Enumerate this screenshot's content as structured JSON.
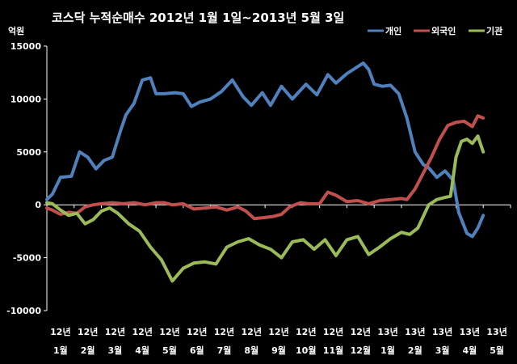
{
  "chart_data": {
    "type": "line",
    "title": "코스닥  누적순매수 2012년 1월 1일~2013년 5월 3일",
    "ylabel": "억원",
    "ylim": [
      -10000,
      15000
    ],
    "yticks": [
      15000,
      10000,
      5000,
      0,
      -5000,
      -10000
    ],
    "grid": false,
    "legend_position": "top-right",
    "categories": [
      [
        "12년",
        "1월"
      ],
      [
        "12년",
        "2월"
      ],
      [
        "12년",
        "3월"
      ],
      [
        "12년",
        "4월"
      ],
      [
        "12년",
        "5월"
      ],
      [
        "12년",
        "6월"
      ],
      [
        "12년",
        "7월"
      ],
      [
        "12년",
        "8월"
      ],
      [
        "12년",
        "9월"
      ],
      [
        "12년",
        "10월"
      ],
      [
        "12년",
        "11월"
      ],
      [
        "12년",
        "12월"
      ],
      [
        "13년",
        "1월"
      ],
      [
        "13년",
        "2월"
      ],
      [
        "13년",
        "3월"
      ],
      [
        "13년",
        "4월"
      ],
      [
        "13년",
        "5월"
      ]
    ],
    "series": [
      {
        "name": "개인",
        "color": "#4F81BD",
        "x": [
          0,
          0.2,
          0.5,
          0.9,
          1.2,
          1.5,
          1.8,
          2.1,
          2.4,
          2.7,
          2.9,
          3.2,
          3.5,
          3.8,
          4.0,
          4.3,
          4.7,
          5.0,
          5.3,
          5.6,
          6.0,
          6.4,
          6.8,
          7.2,
          7.5,
          7.9,
          8.2,
          8.6,
          9.0,
          9.5,
          9.9,
          10.3,
          10.6,
          11.0,
          11.3,
          11.6,
          11.8,
          12.0,
          12.3,
          12.6,
          12.9,
          13.2,
          13.5,
          13.8,
          14.0,
          14.3,
          14.6,
          14.9,
          15.1,
          15.4,
          15.6,
          15.8,
          16.0
        ],
        "values": [
          500,
          1000,
          2600,
          2700,
          5000,
          4500,
          3400,
          4200,
          4500,
          7000,
          8500,
          9600,
          11800,
          12000,
          10500,
          10500,
          10600,
          10500,
          9300,
          9700,
          10000,
          10700,
          11800,
          10200,
          9400,
          10600,
          9400,
          11200,
          10000,
          11400,
          10400,
          12300,
          11500,
          12400,
          12900,
          13400,
          12800,
          11400,
          11200,
          11300,
          10500,
          8200,
          5000,
          3800,
          3500,
          2600,
          3200,
          2300,
          -700,
          -2700,
          -3000,
          -2200,
          -1000
        ]
      },
      {
        "name": "외국인",
        "color": "#C0504D",
        "x": [
          0,
          0.2,
          0.5,
          0.8,
          1.1,
          1.4,
          1.7,
          2.0,
          2.4,
          2.8,
          3.2,
          3.6,
          4.0,
          4.3,
          4.6,
          5.0,
          5.4,
          5.8,
          6.2,
          6.6,
          7.0,
          7.3,
          7.6,
          8.0,
          8.3,
          8.6,
          8.9,
          9.3,
          9.6,
          10.0,
          10.3,
          10.6,
          11.0,
          11.4,
          11.8,
          12.2,
          12.6,
          13.0,
          13.2,
          13.5,
          13.8,
          14.1,
          14.4,
          14.7,
          15.0,
          15.3,
          15.6,
          15.8,
          16.0
        ],
        "values": [
          -300,
          -500,
          -900,
          -700,
          -800,
          -200,
          0,
          100,
          200,
          100,
          200,
          0,
          200,
          200,
          0,
          100,
          -400,
          -300,
          -200,
          -500,
          -200,
          -600,
          -1300,
          -1200,
          -1100,
          -900,
          -200,
          200,
          100,
          100,
          1200,
          900,
          300,
          400,
          100,
          400,
          500,
          600,
          500,
          1500,
          3000,
          4500,
          6200,
          7500,
          7800,
          7900,
          7400,
          8400,
          8200
        ]
      },
      {
        "name": "기관",
        "color": "#9BBB59",
        "x": [
          0,
          0.2,
          0.5,
          0.8,
          1.1,
          1.4,
          1.7,
          2.0,
          2.3,
          2.6,
          3.0,
          3.4,
          3.8,
          4.2,
          4.6,
          5.0,
          5.4,
          5.8,
          6.2,
          6.6,
          7.0,
          7.4,
          7.8,
          8.2,
          8.6,
          9.0,
          9.4,
          9.8,
          10.2,
          10.6,
          11.0,
          11.4,
          11.8,
          12.2,
          12.6,
          13.0,
          13.3,
          13.6,
          14.0,
          14.3,
          14.6,
          14.8,
          15.0,
          15.2,
          15.4,
          15.6,
          15.8,
          16.0
        ],
        "values": [
          200,
          100,
          -500,
          -1000,
          -800,
          -1800,
          -1400,
          -600,
          -300,
          -800,
          -1800,
          -2500,
          -4000,
          -5200,
          -7200,
          -6000,
          -5500,
          -5400,
          -5600,
          -4000,
          -3500,
          -3200,
          -3800,
          -4200,
          -5000,
          -3500,
          -3300,
          -4200,
          -3300,
          -4800,
          -3300,
          -3000,
          -4700,
          -4000,
          -3200,
          -2600,
          -2800,
          -2200,
          0,
          500,
          700,
          800,
          4500,
          6000,
          6200,
          5800,
          6500,
          5000
        ]
      }
    ]
  }
}
